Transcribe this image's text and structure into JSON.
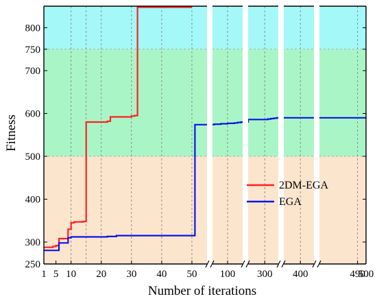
{
  "chart_data": {
    "type": "line",
    "xlabel": "Number of iterations",
    "ylabel": "Fitness",
    "ylim": [
      250,
      850
    ],
    "y_ticks": [
      250,
      300,
      400,
      500,
      600,
      700,
      750,
      800
    ],
    "x_segments": [
      {
        "range": [
          1,
          55
        ],
        "ticks": [
          1,
          5,
          10,
          20,
          30,
          40,
          50
        ]
      },
      {
        "range": [
          55,
          145
        ],
        "ticks": [
          100
        ]
      },
      {
        "range": [
          245,
          345
        ],
        "ticks": [
          300
        ]
      },
      {
        "range": [
          345,
          445
        ],
        "ticks": [
          400
        ]
      },
      {
        "range": [
          445,
          500
        ],
        "ticks": [
          490,
          500
        ]
      }
    ],
    "bands": [
      {
        "from": 250,
        "to": 500,
        "color": "#fbe5cd"
      },
      {
        "from": 500,
        "to": 750,
        "color": "#aaf5c6"
      },
      {
        "from": 750,
        "to": 850,
        "color": "#a4f8f8"
      }
    ],
    "series": [
      {
        "name": "2DM-EGA",
        "color": "#ff2020",
        "x": [
          1,
          3,
          4,
          5,
          6,
          7,
          8,
          9,
          10,
          11,
          12,
          13,
          14,
          15,
          16,
          17,
          18,
          19,
          20,
          21,
          22,
          23,
          24,
          25,
          26,
          27,
          28,
          29,
          30,
          31,
          32,
          33,
          34,
          35,
          36,
          37,
          38,
          39,
          40,
          41,
          42,
          43,
          44,
          45,
          46,
          47,
          48,
          49,
          50
        ],
        "values": [
          288,
          288,
          290,
          292,
          308,
          308,
          308,
          330,
          345,
          347,
          347,
          347,
          348,
          580,
          580,
          580,
          580,
          580,
          580,
          580,
          582,
          592,
          592,
          592,
          592,
          592,
          592,
          592,
          594,
          595,
          848,
          848,
          848,
          848,
          848,
          848,
          848,
          848,
          848,
          848,
          848,
          848,
          848,
          848,
          848,
          848,
          848,
          848,
          848
        ]
      },
      {
        "name": "EGA",
        "color": "#0a14e6",
        "x": [
          1,
          2,
          3,
          4,
          5,
          6,
          7,
          8,
          9,
          10,
          15,
          20,
          22,
          24,
          25,
          30,
          35,
          40,
          45,
          50,
          51,
          55,
          60,
          70,
          80,
          90,
          100,
          110,
          120,
          130,
          140,
          145,
          245,
          250,
          260,
          270,
          280,
          290,
          300,
          310,
          320,
          330,
          340,
          345,
          350,
          360,
          380,
          400,
          420,
          440,
          445,
          450,
          460,
          470,
          480,
          490,
          500
        ],
        "values": [
          281,
          281,
          281,
          281,
          281,
          298,
          298,
          298,
          310,
          312,
          312,
          312,
          313,
          313,
          315,
          315,
          315,
          315,
          315,
          315,
          574,
          574,
          575,
          575,
          576,
          576,
          577,
          577,
          578,
          579,
          580,
          580,
          586,
          586,
          586,
          586,
          586,
          586,
          586,
          587,
          588,
          589,
          590,
          590,
          590,
          590,
          590,
          590,
          590,
          590,
          590,
          590,
          590,
          590,
          590,
          590,
          590
        ]
      }
    ],
    "legend": {
      "placement": "right-middle",
      "items": [
        "2DM-EGA",
        "EGA"
      ]
    },
    "grid": "vertical-dashed"
  }
}
